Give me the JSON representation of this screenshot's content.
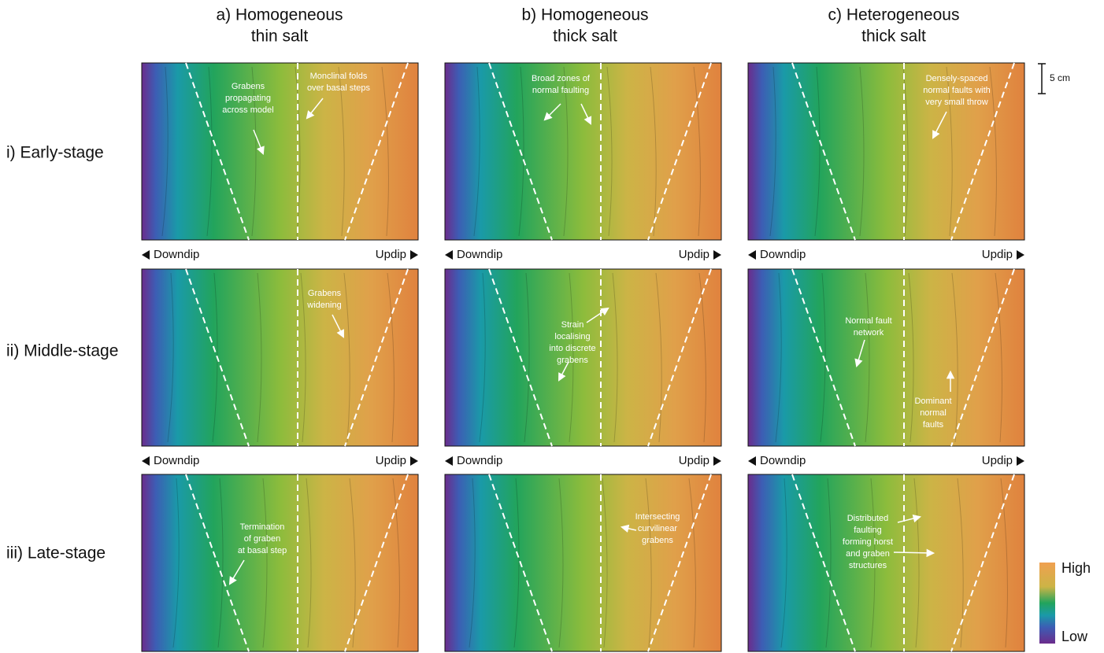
{
  "columns": [
    {
      "line1": "a)  Homogeneous",
      "line2": "thin salt"
    },
    {
      "line1": "b) Homogeneous",
      "line2": "thick salt"
    },
    {
      "line1": "c) Heterogeneous",
      "line2": "thick salt"
    }
  ],
  "rows": [
    "i)  Early-stage",
    "ii) Middle-stage",
    "iii) Late-stage"
  ],
  "direction": {
    "downdip": "Downdip",
    "updip": "Updip"
  },
  "scale_bar": "5 cm",
  "colorbar": {
    "high": "High",
    "low": "Low"
  },
  "panels": [
    {
      "annotations": [
        {
          "lines": [
            "Grabens",
            "propagating",
            "across model"
          ]
        },
        {
          "lines": [
            "Monclinal folds",
            "over basal steps"
          ]
        }
      ]
    },
    {
      "annotations": [
        {
          "lines": [
            "Broad zones of",
            "normal faulting"
          ]
        }
      ]
    },
    {
      "annotations": [
        {
          "lines": [
            "Densely-spaced",
            "normal faults with",
            "very small throw"
          ]
        }
      ]
    },
    {
      "annotations": [
        {
          "lines": [
            "Grabens",
            "widening"
          ]
        }
      ]
    },
    {
      "annotations": [
        {
          "lines": [
            "Strain",
            "localising",
            "into discrete",
            "grabens"
          ]
        }
      ]
    },
    {
      "annotations": [
        {
          "lines": [
            "Normal fault",
            "network"
          ]
        },
        {
          "lines": [
            "Dominant",
            "normal",
            "faults"
          ]
        }
      ]
    },
    {
      "annotations": [
        {
          "lines": [
            "Termination",
            "of graben",
            "at basal step"
          ]
        }
      ]
    },
    {
      "annotations": [
        {
          "lines": [
            "Intersecting",
            "curvilinear",
            "grabens"
          ]
        }
      ]
    },
    {
      "annotations": [
        {
          "lines": [
            "Distributed",
            "faulting",
            "forming horst",
            "and graben",
            "structures"
          ]
        }
      ]
    }
  ]
}
